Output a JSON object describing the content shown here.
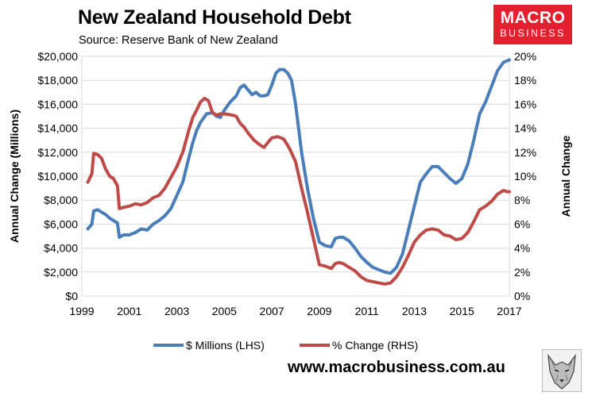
{
  "title": "New Zealand Household Debt",
  "subtitle": "Source: Reserve Bank of New Zealand",
  "brand": {
    "line1": "MACRO",
    "line2": "BUSINESS"
  },
  "footer": "www.macrobusiness.com.au",
  "colors": {
    "lhs": "#4a7ebb",
    "rhs": "#be4b48",
    "brand": "#e3202d"
  },
  "chart_data": {
    "type": "line",
    "grid": true,
    "legend_position": "bottom",
    "x_ticks": [
      "1999",
      "2001",
      "2003",
      "2005",
      "2007",
      "2009",
      "2011",
      "2013",
      "2015",
      "2017"
    ],
    "xlim": [
      1999,
      2017
    ],
    "y_left": {
      "label": "Annual Change (Millions)",
      "ticks": [
        "$0",
        "$2,000",
        "$4,000",
        "$6,000",
        "$8,000",
        "$10,000",
        "$12,000",
        "$14,000",
        "$16,000",
        "$18,000",
        "$20,000"
      ],
      "ylim": [
        0,
        20000
      ]
    },
    "y_right": {
      "label": "Annual Change",
      "ticks": [
        "0%",
        "2%",
        "4%",
        "6%",
        "8%",
        "10%",
        "12%",
        "14%",
        "16%",
        "18%",
        "20%"
      ],
      "ylim": [
        0,
        20
      ]
    },
    "series": [
      {
        "name": "$ Millions (LHS)",
        "axis": "left",
        "points": [
          [
            1999.25,
            5600
          ],
          [
            1999.42,
            6000
          ],
          [
            1999.5,
            7100
          ],
          [
            1999.67,
            7200
          ],
          [
            1999.83,
            7000
          ],
          [
            2000.0,
            6800
          ],
          [
            2000.17,
            6500
          ],
          [
            2000.33,
            6300
          ],
          [
            2000.5,
            6100
          ],
          [
            2000.58,
            4900
          ],
          [
            2000.75,
            5100
          ],
          [
            2001.0,
            5100
          ],
          [
            2001.25,
            5300
          ],
          [
            2001.5,
            5600
          ],
          [
            2001.75,
            5500
          ],
          [
            2002.0,
            6000
          ],
          [
            2002.25,
            6300
          ],
          [
            2002.5,
            6700
          ],
          [
            2002.75,
            7300
          ],
          [
            2003.0,
            8400
          ],
          [
            2003.25,
            9500
          ],
          [
            2003.5,
            11500
          ],
          [
            2003.67,
            12800
          ],
          [
            2003.83,
            13800
          ],
          [
            2004.0,
            14500
          ],
          [
            2004.25,
            15200
          ],
          [
            2004.5,
            15300
          ],
          [
            2004.67,
            15000
          ],
          [
            2004.83,
            14900
          ],
          [
            2005.0,
            15500
          ],
          [
            2005.25,
            16200
          ],
          [
            2005.5,
            16700
          ],
          [
            2005.67,
            17400
          ],
          [
            2005.83,
            17600
          ],
          [
            2006.0,
            17200
          ],
          [
            2006.17,
            16800
          ],
          [
            2006.33,
            17000
          ],
          [
            2006.5,
            16700
          ],
          [
            2006.67,
            16700
          ],
          [
            2006.83,
            16800
          ],
          [
            2007.0,
            17600
          ],
          [
            2007.17,
            18600
          ],
          [
            2007.33,
            18900
          ],
          [
            2007.5,
            18900
          ],
          [
            2007.67,
            18600
          ],
          [
            2007.83,
            18000
          ],
          [
            2008.0,
            16000
          ],
          [
            2008.25,
            12000
          ],
          [
            2008.5,
            9000
          ],
          [
            2008.75,
            6500
          ],
          [
            2009.0,
            4500
          ],
          [
            2009.25,
            4200
          ],
          [
            2009.5,
            4100
          ],
          [
            2009.67,
            4800
          ],
          [
            2009.83,
            4900
          ],
          [
            2010.0,
            4900
          ],
          [
            2010.25,
            4600
          ],
          [
            2010.5,
            4000
          ],
          [
            2010.75,
            3300
          ],
          [
            2011.0,
            2800
          ],
          [
            2011.25,
            2400
          ],
          [
            2011.5,
            2200
          ],
          [
            2011.75,
            2000
          ],
          [
            2012.0,
            1900
          ],
          [
            2012.25,
            2400
          ],
          [
            2012.5,
            3500
          ],
          [
            2012.75,
            5500
          ],
          [
            2013.0,
            7500
          ],
          [
            2013.25,
            9500
          ],
          [
            2013.5,
            10200
          ],
          [
            2013.75,
            10800
          ],
          [
            2014.0,
            10800
          ],
          [
            2014.25,
            10300
          ],
          [
            2014.5,
            9800
          ],
          [
            2014.75,
            9400
          ],
          [
            2015.0,
            9800
          ],
          [
            2015.25,
            11000
          ],
          [
            2015.5,
            13000
          ],
          [
            2015.75,
            15200
          ],
          [
            2016.0,
            16200
          ],
          [
            2016.25,
            17500
          ],
          [
            2016.5,
            18800
          ],
          [
            2016.75,
            19500
          ],
          [
            2017.0,
            19700
          ]
        ]
      },
      {
        "name": "% Change (RHS)",
        "axis": "right",
        "points": [
          [
            1999.25,
            9.5
          ],
          [
            1999.42,
            10.2
          ],
          [
            1999.5,
            11.9
          ],
          [
            1999.67,
            11.8
          ],
          [
            1999.83,
            11.5
          ],
          [
            2000.0,
            10.6
          ],
          [
            2000.17,
            10.0
          ],
          [
            2000.33,
            9.8
          ],
          [
            2000.5,
            9.2
          ],
          [
            2000.58,
            7.3
          ],
          [
            2000.75,
            7.4
          ],
          [
            2001.0,
            7.5
          ],
          [
            2001.25,
            7.7
          ],
          [
            2001.5,
            7.6
          ],
          [
            2001.75,
            7.8
          ],
          [
            2002.0,
            8.2
          ],
          [
            2002.25,
            8.4
          ],
          [
            2002.5,
            9.0
          ],
          [
            2002.75,
            9.9
          ],
          [
            2003.0,
            10.8
          ],
          [
            2003.25,
            12.0
          ],
          [
            2003.5,
            13.8
          ],
          [
            2003.67,
            14.9
          ],
          [
            2003.83,
            15.5
          ],
          [
            2004.0,
            16.2
          ],
          [
            2004.17,
            16.5
          ],
          [
            2004.33,
            16.3
          ],
          [
            2004.5,
            15.3
          ],
          [
            2004.67,
            15.1
          ],
          [
            2004.83,
            15.2
          ],
          [
            2005.0,
            15.2
          ],
          [
            2005.33,
            15.1
          ],
          [
            2005.5,
            15.0
          ],
          [
            2005.67,
            14.4
          ],
          [
            2005.83,
            14.1
          ],
          [
            2006.0,
            13.6
          ],
          [
            2006.25,
            13.0
          ],
          [
            2006.5,
            12.6
          ],
          [
            2006.67,
            12.4
          ],
          [
            2006.83,
            12.8
          ],
          [
            2007.0,
            13.2
          ],
          [
            2007.25,
            13.3
          ],
          [
            2007.5,
            13.1
          ],
          [
            2007.75,
            12.3
          ],
          [
            2008.0,
            11.2
          ],
          [
            2008.25,
            9.0
          ],
          [
            2008.5,
            7.0
          ],
          [
            2008.75,
            4.8
          ],
          [
            2009.0,
            2.6
          ],
          [
            2009.25,
            2.5
          ],
          [
            2009.5,
            2.3
          ],
          [
            2009.67,
            2.7
          ],
          [
            2009.83,
            2.8
          ],
          [
            2010.0,
            2.7
          ],
          [
            2010.25,
            2.4
          ],
          [
            2010.5,
            2.1
          ],
          [
            2010.75,
            1.6
          ],
          [
            2011.0,
            1.3
          ],
          [
            2011.25,
            1.2
          ],
          [
            2011.5,
            1.1
          ],
          [
            2011.75,
            1.0
          ],
          [
            2012.0,
            1.1
          ],
          [
            2012.25,
            1.6
          ],
          [
            2012.5,
            2.4
          ],
          [
            2012.75,
            3.4
          ],
          [
            2013.0,
            4.5
          ],
          [
            2013.25,
            5.1
          ],
          [
            2013.5,
            5.5
          ],
          [
            2013.75,
            5.6
          ],
          [
            2014.0,
            5.5
          ],
          [
            2014.25,
            5.1
          ],
          [
            2014.5,
            5.0
          ],
          [
            2014.75,
            4.7
          ],
          [
            2015.0,
            4.8
          ],
          [
            2015.25,
            5.3
          ],
          [
            2015.5,
            6.2
          ],
          [
            2015.75,
            7.2
          ],
          [
            2016.0,
            7.5
          ],
          [
            2016.25,
            7.9
          ],
          [
            2016.5,
            8.5
          ],
          [
            2016.75,
            8.8
          ],
          [
            2016.92,
            8.7
          ],
          [
            2017.0,
            8.7
          ]
        ]
      }
    ]
  }
}
